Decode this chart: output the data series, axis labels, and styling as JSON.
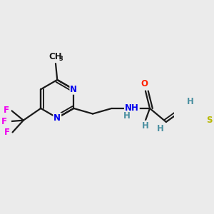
{
  "bg_color": "#ebebeb",
  "bond_color": "#1a1a1a",
  "bond_width": 1.6,
  "atom_colors": {
    "N": "#0000ee",
    "O": "#ff2000",
    "S": "#b8b800",
    "F": "#ee00ee",
    "H": "#4a8fa0",
    "C": "#1a1a1a"
  },
  "font_size": 8.5,
  "font_size_sub": 6.0
}
